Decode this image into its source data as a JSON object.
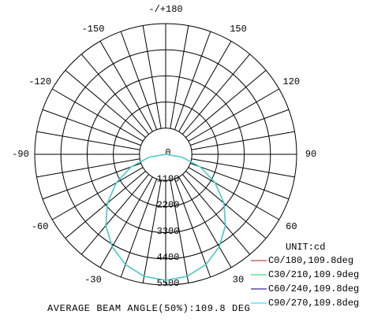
{
  "chart_data": {
    "type": "polar",
    "x": [
      -90,
      -80,
      -70,
      -60,
      -50,
      -40,
      -30,
      -20,
      -10,
      0,
      10,
      20,
      30,
      40,
      50,
      60,
      70,
      80,
      90
    ],
    "series": [
      {
        "name": "C0/180,109.8deg",
        "color": "#c04848",
        "values": [
          0,
          700,
          1540,
          2390,
          3190,
          3900,
          4490,
          4935,
          5210,
          5300,
          5210,
          4935,
          4490,
          3900,
          3190,
          2390,
          1540,
          700,
          0
        ]
      },
      {
        "name": "C30/210,109.9deg",
        "color": "#40e080",
        "values": [
          0,
          710,
          1550,
          2400,
          3200,
          3910,
          4500,
          4940,
          5215,
          5300,
          5215,
          4940,
          4500,
          3910,
          3200,
          2400,
          1550,
          710,
          0
        ]
      },
      {
        "name": "C60/240,109.8deg",
        "color": "#303090",
        "values": [
          0,
          705,
          1545,
          2395,
          3195,
          3905,
          4495,
          4938,
          5212,
          5300,
          5212,
          4938,
          4495,
          3905,
          3195,
          2395,
          1545,
          705,
          0
        ]
      },
      {
        "name": "C90/270,109.8deg",
        "color": "#40e0e0",
        "values": [
          0,
          700,
          1540,
          2390,
          3190,
          3900,
          4490,
          4935,
          5210,
          5300,
          5210,
          4935,
          4490,
          3900,
          3190,
          2390,
          1540,
          700,
          0
        ]
      }
    ],
    "rlim": [
      0,
      5500
    ],
    "rticks": [
      0,
      1100,
      2200,
      3300,
      4400,
      5500
    ],
    "angle_ticks": [
      {
        "value": 180,
        "label": "-/+180"
      },
      150,
      120,
      90,
      60,
      30,
      -30,
      -60,
      -90,
      -120,
      -150
    ],
    "unit_label": "UNIT:cd",
    "footer": "AVERAGE BEAM ANGLE(50%):109.8 DEG"
  }
}
